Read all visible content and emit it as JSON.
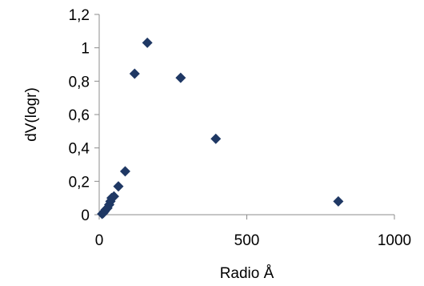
{
  "chart_data": {
    "type": "scatter",
    "xlabel": "Radio Å",
    "ylabel": "dV(logr)",
    "xlim": [
      0,
      1000
    ],
    "ylim": [
      0,
      1.2
    ],
    "x_ticks": [
      "0",
      "500",
      "1000"
    ],
    "x_tick_values": [
      0,
      500,
      1000
    ],
    "y_ticks": [
      "0",
      "0,2",
      "0,4",
      "0,6",
      "0,8",
      "1",
      "1,2"
    ],
    "y_tick_values": [
      0,
      0.2,
      0.4,
      0.6,
      0.8,
      1.0,
      1.2
    ],
    "grid": false,
    "legend": "none",
    "marker": "diamond",
    "marker_color": "#1f3864",
    "points": [
      {
        "x": 10,
        "y": 0.005
      },
      {
        "x": 14,
        "y": 0.01
      },
      {
        "x": 18,
        "y": 0.02
      },
      {
        "x": 22,
        "y": 0.03
      },
      {
        "x": 28,
        "y": 0.04
      },
      {
        "x": 34,
        "y": 0.06
      },
      {
        "x": 38,
        "y": 0.08
      },
      {
        "x": 42,
        "y": 0.1
      },
      {
        "x": 50,
        "y": 0.11
      },
      {
        "x": 65,
        "y": 0.17
      },
      {
        "x": 88,
        "y": 0.26
      },
      {
        "x": 120,
        "y": 0.845
      },
      {
        "x": 163,
        "y": 1.03
      },
      {
        "x": 276,
        "y": 0.82
      },
      {
        "x": 395,
        "y": 0.455
      },
      {
        "x": 810,
        "y": 0.08
      }
    ]
  }
}
